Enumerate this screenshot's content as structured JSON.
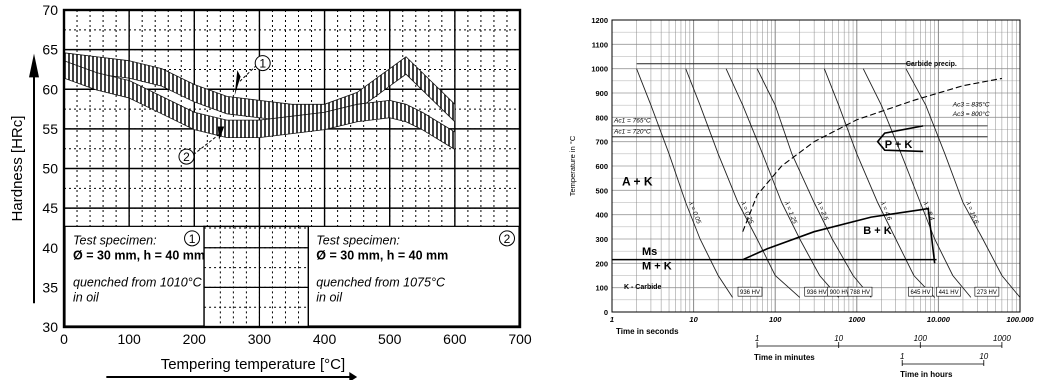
{
  "chart_data": [
    {
      "type": "line",
      "title": "",
      "xlabel": "Tempering temperature [°C]",
      "ylabel": "Hardness [HRc]",
      "xlim": [
        0,
        700
      ],
      "ylim": [
        30,
        70
      ],
      "x_ticks": [
        "0",
        "100",
        "200",
        "300",
        "400",
        "500",
        "600",
        "700"
      ],
      "y_ticks": [
        "30",
        "35",
        "40",
        "45",
        "50",
        "55",
        "60",
        "65",
        "70"
      ],
      "grid": true,
      "series": [
        {
          "name": "1",
          "x": [
            0,
            50,
            100,
            150,
            200,
            250,
            300,
            350,
            400,
            450,
            500,
            525,
            550,
            600
          ],
          "y": [
            63.5,
            63,
            62.5,
            61.5,
            59.5,
            58,
            57.5,
            57,
            57,
            58.5,
            61.5,
            63,
            61,
            57
          ]
        },
        {
          "name": "2",
          "x": [
            0,
            50,
            100,
            150,
            200,
            250,
            300,
            350,
            400,
            450,
            500,
            525,
            550,
            600
          ],
          "y": [
            62.5,
            61,
            60,
            58,
            56,
            55,
            55,
            55.5,
            56,
            57,
            57.5,
            57,
            56,
            53.5
          ]
        }
      ],
      "markers": [
        "1",
        "2"
      ],
      "boxes": [
        {
          "marker": "1",
          "lines": [
            "Test specimen:",
            "Ø = 30 mm, h = 40 mm",
            "quenched from 1010°C",
            "in oil"
          ]
        },
        {
          "marker": "2",
          "lines": [
            "Test specimen:",
            "Ø = 30 mm, h = 40 mm",
            "quenched from 1075°C",
            "in oil"
          ]
        }
      ]
    },
    {
      "type": "line",
      "title": "",
      "ylabel": "Temperature in °C",
      "y_ticks": [
        "0",
        "100",
        "200",
        "300",
        "400",
        "500",
        "600",
        "700",
        "800",
        "900",
        "1000",
        "1100",
        "1200"
      ],
      "ylim": [
        0,
        1200
      ],
      "x_scale": "log",
      "x_ticks": [
        "1",
        "10",
        "100",
        "1000",
        "10.000",
        "100.000"
      ],
      "xlabel": "Time in seconds",
      "minutes_axis": {
        "label": "Time in minutes",
        "ticks": [
          "1",
          "10",
          "100",
          "1000"
        ]
      },
      "hours_axis": {
        "label": "Time in hours",
        "ticks": [
          "1",
          "10"
        ]
      },
      "annotations": [
        "Ac1 = 765°C",
        "Ac1 = 720°C",
        "Ac3 = 835°C",
        "Ac3 = 800°C",
        "Carbide precip.",
        "A + K",
        "P + K",
        "B + K",
        "Ms",
        "M + K",
        "K - Carbide"
      ],
      "hardness_labels": [
        "936 HV",
        "936 HV",
        "900 HV",
        "788 HV",
        "645 HV",
        "441 HV",
        "273 HV"
      ],
      "cooling_curves": [
        {
          "label": "λ = 0.05",
          "x": [
            2,
            3,
            5,
            8,
            12,
            20,
            30
          ],
          "y": [
            1000,
            850,
            650,
            450,
            300,
            150,
            60
          ]
        },
        {
          "label": "λ = 0.25",
          "x": [
            8,
            12,
            20,
            35,
            60,
            100,
            200
          ],
          "y": [
            1000,
            850,
            650,
            450,
            300,
            150,
            60
          ]
        },
        {
          "label": "λ = 1.25",
          "x": [
            25,
            40,
            70,
            120,
            200,
            350,
            600
          ],
          "y": [
            1000,
            850,
            650,
            450,
            300,
            150,
            60
          ]
        },
        {
          "label": "λ = 2.5",
          "x": [
            60,
            100,
            160,
            300,
            500,
            900,
            1500
          ],
          "y": [
            1000,
            850,
            650,
            450,
            300,
            150,
            60
          ]
        },
        {
          "label": "λ = 4.6",
          "x": [
            400,
            600,
            1000,
            1800,
            3000,
            5000,
            9000
          ],
          "y": [
            1000,
            850,
            650,
            450,
            300,
            150,
            60
          ]
        },
        {
          "label": "λ = 8.4",
          "x": [
            1200,
            2000,
            3500,
            6000,
            9000,
            15000,
            25000
          ],
          "y": [
            1000,
            850,
            650,
            450,
            300,
            150,
            60
          ]
        },
        {
          "label": "λ = 15.6",
          "x": [
            4000,
            7000,
            12000,
            20000,
            35000,
            60000,
            100000
          ],
          "y": [
            1000,
            850,
            650,
            450,
            300,
            150,
            60
          ]
        }
      ]
    }
  ]
}
